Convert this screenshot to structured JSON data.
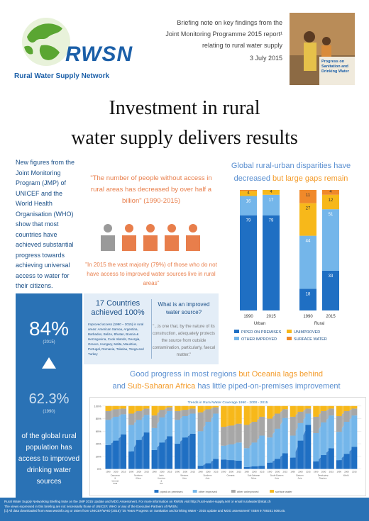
{
  "header": {
    "logo_text": "RWSN",
    "logo_subtitle": "Rural Water Supply Network",
    "brief_lines": [
      "Briefing note on key findings from the",
      "Joint Monitoring Programme 2015 report¹",
      "relating to rural water supply"
    ],
    "date": "3 July 2015",
    "cover_text": "Progress on Sanitation and Drinking Water"
  },
  "title": {
    "line1": "Investment in rural",
    "line2": "water supply delivers results"
  },
  "left_panel": {
    "text": "New figures from the Joint Monitoring Program (JMP) of UNICEF and the World Health Organisation (WHO) show that most countries have achieved substantial progress towards achieving universal access to water for their citizens.",
    "stat1": "84%",
    "stat1_year": "(2015)",
    "stat2": "62.3%",
    "stat2_year": "(1990)",
    "caption": "of the global rural population has access to improved drinking water sources"
  },
  "middle": {
    "quote1": "\"The number of people without access in rural areas has decreased by over half a billion\" (1990-2015)",
    "quote2": "\"In 2015 the vast majority (79%) of those who do not have access to improved water sources live in rural areas\"",
    "countries_heading": "17 Countries achieved 100%",
    "countries_list": "Improved access (1990 – 2015) in rural areas: American Samoa, Argentina, Barbados, Belize, Bhutan, Bosnia & Herzegovina, Cook Islands, Georgia, Greece, Hungary, Malta, Mauritius, Portugal, Romania, Tokelau, Tonga and Turkey",
    "question": "What is an improved water source?",
    "answer": "\"...is one that, by the nature of its construction, adequately protects the source from outside contamination, particularly, faecal matter.\""
  },
  "right_chart": {
    "title_blue": "Global rural-urban disparities have decreased",
    "title_orange": "but large gaps remain"
  },
  "bottom": {
    "title_blue1": "Good progress in most regions",
    "title_orange1": "but Oceania lags behind",
    "title_blue2": "and",
    "title_orange2": "Sub-Saharan Africa",
    "title_blue3": "has little piped-on-premises improvement"
  },
  "chart_data": [
    {
      "type": "bar",
      "stacked": true,
      "categories": [
        "1990",
        "2015",
        "1990",
        "2015"
      ],
      "groups": [
        "Urban",
        "Rural"
      ],
      "series": [
        {
          "name": "PIPED ON PREMISES",
          "color": "#1f6fc3",
          "values": [
            79,
            79,
            18,
            33
          ]
        },
        {
          "name": "OTHER IMPROVED",
          "color": "#74b6ea",
          "values": [
            16,
            17,
            44,
            51
          ]
        },
        {
          "name": "UNIMPROVED",
          "color": "#f7b81a",
          "values": [
            4,
            4,
            27,
            12
          ]
        },
        {
          "name": "SURFACE WATER",
          "color": "#f0892a",
          "values": [
            1,
            0,
            11,
            4
          ]
        }
      ],
      "ylim": [
        0,
        100
      ]
    },
    {
      "type": "bar",
      "stacked": true,
      "title": "Trends in Rural Water Coverage 1990 - 2000 - 2015",
      "categories": [
        "Caucasus & Central Asia",
        "Northern Africa",
        "Latin America & the Caribbean",
        "Western Asia",
        "Southern Asia",
        "Oceania",
        "Sub-Saharan Africa",
        "South-Eastern Asia",
        "Eastern Asia",
        "Developing Regions",
        "World"
      ],
      "years": [
        "1990",
        "2000",
        "2015"
      ],
      "series": [
        {
          "name": "piped on premises",
          "color": "#1f6fc3",
          "values": [
            [
              38,
              45,
              55
            ],
            [
              28,
              46,
              58
            ],
            [
              30,
              42,
              52
            ],
            [
              40,
              50,
              56
            ],
            [
              5,
              9,
              16
            ],
            [
              15,
              14,
              13
            ],
            [
              3,
              4,
              5
            ],
            [
              10,
              16,
              25
            ],
            [
              18,
              45,
              70
            ],
            [
              12,
              22,
              33
            ],
            [
              14,
              24,
              35
            ]
          ]
        },
        {
          "name": "other improved",
          "color": "#74b6ea",
          "values": [
            [
              40,
              38,
              32
            ],
            [
              42,
              32,
              28
            ],
            [
              35,
              40,
              40
            ],
            [
              38,
              34,
              32
            ],
            [
              55,
              66,
              72
            ],
            [
              22,
              25,
              29
            ],
            [
              30,
              38,
              48
            ],
            [
              40,
              48,
              56
            ],
            [
              35,
              28,
              18
            ],
            [
              45,
              52,
              52
            ],
            [
              45,
              51,
              50
            ]
          ]
        },
        {
          "name": "other unimproved",
          "color": "#a7a7a7",
          "values": [
            [
              14,
              12,
              9
            ],
            [
              18,
              14,
              10
            ],
            [
              20,
              12,
              6
            ],
            [
              14,
              10,
              8
            ],
            [
              30,
              20,
              10
            ],
            [
              30,
              30,
              30
            ],
            [
              37,
              33,
              30
            ],
            [
              30,
              24,
              14
            ],
            [
              30,
              18,
              8
            ],
            [
              26,
              18,
              11
            ],
            [
              25,
              17,
              11
            ]
          ]
        },
        {
          "name": "surface water",
          "color": "#f7b81a",
          "values": [
            [
              8,
              5,
              4
            ],
            [
              12,
              8,
              4
            ],
            [
              15,
              6,
              2
            ],
            [
              8,
              6,
              4
            ],
            [
              10,
              5,
              2
            ],
            [
              33,
              31,
              28
            ],
            [
              30,
              25,
              17
            ],
            [
              20,
              12,
              5
            ],
            [
              17,
              9,
              4
            ],
            [
              17,
              8,
              4
            ],
            [
              16,
              8,
              4
            ]
          ]
        }
      ],
      "ylim": [
        0,
        100
      ]
    }
  ],
  "footer": {
    "line1": "Rural Water Supply Networking Briefing Note on the JMP 2015 Update and MDG Assessment. For more information on RWSN visit http://rural-water-supply.net/ or email ruralwater@skat.ch",
    "line2": "The views expressed in this briefing are not necessarily those of UNICEF, WHO or any of the Executive Partners of RWSN.",
    "line3": "[1] All data downloaded from www.wssinfo.org or taken from UNICEF/WHO (2015) \"25 Years Progress on Sanitation and Drinking Water - 2015 update and MDG assessment\" ISBN 9 789241 509145."
  }
}
